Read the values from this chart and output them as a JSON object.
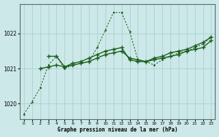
{
  "title": "Graphe pression niveau de la mer (hPa)",
  "background_color": "#cce8e8",
  "grid_color": "#aad4d4",
  "line_color": "#1a5c1a",
  "xlim": [
    -0.5,
    23.5
  ],
  "ylim": [
    1019.55,
    1022.85
  ],
  "yticks": [
    1020,
    1021,
    1022
  ],
  "xticks": [
    0,
    1,
    2,
    3,
    4,
    5,
    6,
    7,
    8,
    9,
    10,
    11,
    12,
    13,
    14,
    15,
    16,
    17,
    18,
    19,
    20,
    21,
    22,
    23
  ],
  "dotted_x": [
    0,
    1,
    2,
    3,
    4,
    5,
    6,
    7,
    8,
    9,
    10,
    11,
    12,
    13,
    14,
    15,
    16,
    17,
    18,
    19,
    20,
    21,
    22,
    23
  ],
  "dotted_y": [
    1019.7,
    1020.05,
    1020.45,
    1021.1,
    1021.35,
    1021.0,
    1021.1,
    1021.15,
    1021.2,
    1021.6,
    1022.1,
    1022.6,
    1022.6,
    1022.05,
    1021.25,
    1021.2,
    1021.1,
    1021.25,
    1021.35,
    1021.45,
    1021.5,
    1021.6,
    1021.7,
    1021.9
  ],
  "solid1_x": [
    3,
    4,
    5,
    6,
    7,
    8,
    9,
    10,
    11,
    12,
    13,
    14,
    15,
    16,
    17,
    18,
    19,
    20,
    21,
    22,
    23
  ],
  "solid1_y": [
    1021.35,
    1021.35,
    1021.05,
    1021.15,
    1021.2,
    1021.3,
    1021.4,
    1021.5,
    1021.55,
    1021.6,
    1021.25,
    1021.2,
    1021.2,
    1021.3,
    1021.35,
    1021.45,
    1021.5,
    1021.55,
    1021.65,
    1021.75,
    1021.9
  ],
  "solid2_x": [
    2,
    3,
    4,
    5,
    6,
    7,
    8,
    9,
    10,
    11,
    12,
    13,
    14,
    15,
    16,
    17,
    18,
    19,
    20,
    21,
    22,
    23
  ],
  "solid2_y": [
    1021.0,
    1021.05,
    1021.1,
    1021.05,
    1021.1,
    1021.15,
    1021.2,
    1021.3,
    1021.4,
    1021.45,
    1021.5,
    1021.3,
    1021.25,
    1021.2,
    1021.25,
    1021.3,
    1021.35,
    1021.4,
    1021.5,
    1021.55,
    1021.6,
    1021.8
  ]
}
